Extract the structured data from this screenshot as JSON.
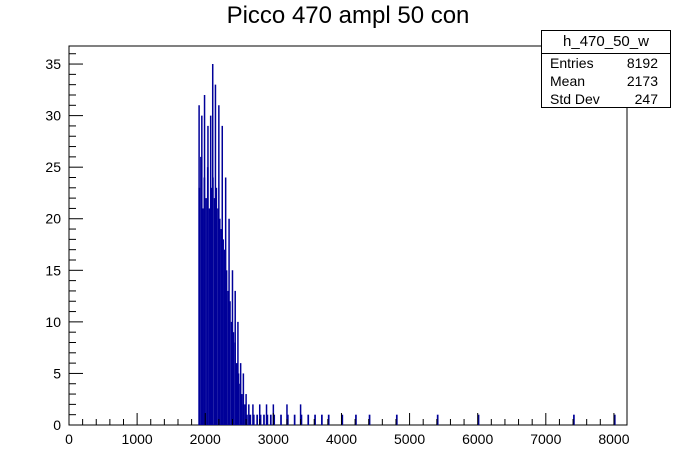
{
  "chart_data": {
    "type": "bar",
    "style": "histogram",
    "title": "Picco 470 ampl 50 con",
    "xlabel": "",
    "ylabel": "",
    "xlim": [
      0,
      8192
    ],
    "ylim": [
      0,
      36.75
    ],
    "xticks": [
      0,
      1000,
      2000,
      3000,
      4000,
      5000,
      6000,
      7000,
      8000
    ],
    "yticks": [
      0,
      5,
      10,
      15,
      20,
      25,
      30,
      35
    ],
    "color": "#000099",
    "bins": [
      {
        "x": 1900,
        "y": 23
      },
      {
        "x": 1925,
        "y": 26
      },
      {
        "x": 1950,
        "y": 21
      },
      {
        "x": 1975,
        "y": 24
      },
      {
        "x": 2000,
        "y": 22
      },
      {
        "x": 2025,
        "y": 25
      },
      {
        "x": 2050,
        "y": 21
      },
      {
        "x": 2075,
        "y": 23
      },
      {
        "x": 2100,
        "y": 24
      },
      {
        "x": 2125,
        "y": 22
      },
      {
        "x": 2150,
        "y": 23
      },
      {
        "x": 2175,
        "y": 21
      },
      {
        "x": 2200,
        "y": 20
      },
      {
        "x": 2225,
        "y": 19
      },
      {
        "x": 2250,
        "y": 18
      },
      {
        "x": 2275,
        "y": 17
      },
      {
        "x": 2300,
        "y": 15
      },
      {
        "x": 2325,
        "y": 13
      },
      {
        "x": 2350,
        "y": 12
      },
      {
        "x": 2375,
        "y": 10
      },
      {
        "x": 2400,
        "y": 9
      },
      {
        "x": 2425,
        "y": 8
      },
      {
        "x": 2450,
        "y": 6
      },
      {
        "x": 2475,
        "y": 5
      },
      {
        "x": 2500,
        "y": 4
      },
      {
        "x": 2525,
        "y": 3
      },
      {
        "x": 2550,
        "y": 2
      },
      {
        "x": 2575,
        "y": 2
      },
      {
        "x": 2600,
        "y": 1
      },
      {
        "x": 2650,
        "y": 1
      },
      {
        "x": 2700,
        "y": 1
      },
      {
        "x": 2750,
        "y": 1
      },
      {
        "x": 2800,
        "y": 1
      },
      {
        "x": 2850,
        "y": 1
      },
      {
        "x": 2900,
        "y": 1
      },
      {
        "x": 2950,
        "y": 1
      },
      {
        "x": 3000,
        "y": 1
      },
      {
        "x": 3100,
        "y": 1
      },
      {
        "x": 3200,
        "y": 1
      },
      {
        "x": 3300,
        "y": 1
      },
      {
        "x": 3400,
        "y": 1
      },
      {
        "x": 3500,
        "y": 1
      },
      {
        "x": 3600,
        "y": 1
      },
      {
        "x": 3700,
        "y": 1
      },
      {
        "x": 3800,
        "y": 1
      },
      {
        "x": 4000,
        "y": 1
      },
      {
        "x": 4200,
        "y": 1
      },
      {
        "x": 4400,
        "y": 1
      },
      {
        "x": 4800,
        "y": 1
      },
      {
        "x": 5400,
        "y": 1
      },
      {
        "x": 6000,
        "y": 1
      },
      {
        "x": 7400,
        "y": 1
      },
      {
        "x": 8000,
        "y": 1
      }
    ],
    "peaks": [
      {
        "x": 1910,
        "y": 31
      },
      {
        "x": 1950,
        "y": 30
      },
      {
        "x": 1990,
        "y": 32
      },
      {
        "x": 2040,
        "y": 29
      },
      {
        "x": 2080,
        "y": 30
      },
      {
        "x": 2110,
        "y": 35
      },
      {
        "x": 2150,
        "y": 33
      },
      {
        "x": 2200,
        "y": 31
      },
      {
        "x": 2250,
        "y": 29
      },
      {
        "x": 2300,
        "y": 24
      },
      {
        "x": 2350,
        "y": 20
      },
      {
        "x": 2400,
        "y": 15
      },
      {
        "x": 2440,
        "y": 13
      },
      {
        "x": 2480,
        "y": 10
      },
      {
        "x": 2520,
        "y": 6
      },
      {
        "x": 2560,
        "y": 5
      },
      {
        "x": 2600,
        "y": 3
      },
      {
        "x": 2640,
        "y": 2
      },
      {
        "x": 2700,
        "y": 2
      },
      {
        "x": 2800,
        "y": 2
      },
      {
        "x": 2900,
        "y": 2
      },
      {
        "x": 3000,
        "y": 2
      },
      {
        "x": 3200,
        "y": 2
      },
      {
        "x": 3400,
        "y": 2
      }
    ],
    "stats": {
      "name": "h_470_50_w",
      "entries_label": "Entries",
      "entries": "8192",
      "mean_label": "Mean",
      "mean": "2173",
      "std_label": "Std Dev",
      "std": "247"
    }
  }
}
